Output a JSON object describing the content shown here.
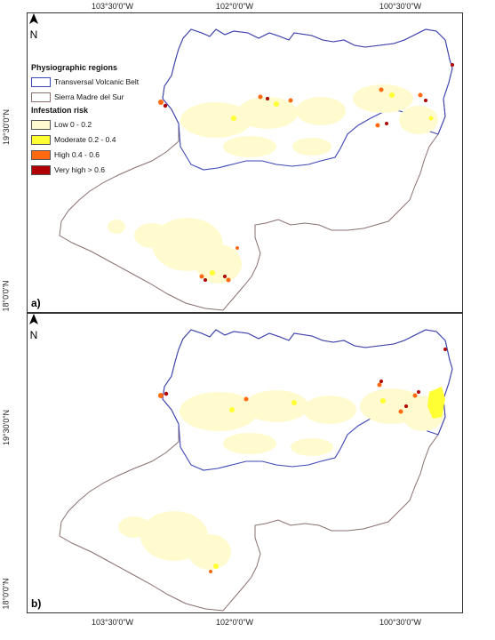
{
  "longitude_ticks": [
    "103°30'0\"W",
    "102°0'0\"W",
    "100°30'0\"W"
  ],
  "latitude_ticks": [
    "19°30'0\"N",
    "18°0'0\"N"
  ],
  "legend": {
    "regions_title": "Physiographic regions",
    "regions": [
      {
        "label": "Transversal Volcanic Belt",
        "color": "#3c46b4"
      },
      {
        "label": "Sierra Madre del Sur",
        "color": "#8a6f6f"
      }
    ],
    "risk_title": "Infestation risk",
    "risk_classes": [
      {
        "label": "Low 0 - 0.2",
        "color": "#fffbcf"
      },
      {
        "label": "Moderate 0.2 - 0.4",
        "color": "#ffff33"
      },
      {
        "label": "High 0.4 - 0.6",
        "color": "#ff6a10"
      },
      {
        "label": "Very high > 0.6",
        "color": "#b00000"
      }
    ]
  },
  "panels": [
    {
      "letter": "a)",
      "north_label": "N"
    },
    {
      "letter": "b)",
      "north_label": "N"
    }
  ]
}
